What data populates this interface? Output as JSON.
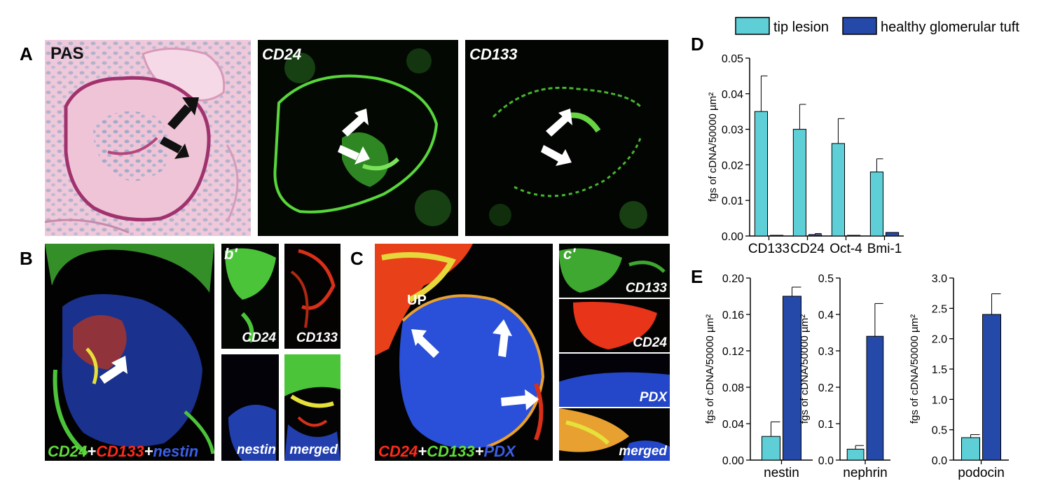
{
  "panels": {
    "A": {
      "letter": "A",
      "images": [
        {
          "label": "PAS"
        },
        {
          "label": "CD24"
        },
        {
          "label": "CD133"
        }
      ]
    },
    "B": {
      "letter": "B",
      "caption": {
        "parts": [
          {
            "text": "CD24",
            "color": "#5fdd3a"
          },
          {
            "text": "+",
            "color": "#ffffff"
          },
          {
            "text": "CD133",
            "color": "#ff2a1a"
          },
          {
            "text": "+",
            "color": "#ffffff"
          },
          {
            "text": "nestin",
            "color": "#3a5fe8"
          }
        ]
      },
      "sub": {
        "letter": "b'",
        "tiles": [
          "CD24",
          "CD133",
          "nestin",
          "merged"
        ]
      }
    },
    "C": {
      "letter": "C",
      "inner_label": "UP",
      "caption": {
        "parts": [
          {
            "text": "CD24",
            "color": "#ff2a1a"
          },
          {
            "text": "+",
            "color": "#ffffff"
          },
          {
            "text": "CD133",
            "color": "#5fdd3a"
          },
          {
            "text": "+",
            "color": "#ffffff"
          },
          {
            "text": "PDX",
            "color": "#3a5fe8"
          }
        ]
      },
      "sub": {
        "letter": "c'",
        "tiles": [
          "CD133",
          "CD24",
          "PDX",
          "merged"
        ]
      }
    },
    "D": {
      "letter": "D"
    },
    "E": {
      "letter": "E"
    }
  },
  "colors": {
    "tip_lesion": "#5ecfd6",
    "healthy": "#2449a8",
    "green_stain": "#4fd23a",
    "red_stain": "#ff3018",
    "blue_stain": "#2a4fd8",
    "pas_bg": "#efc8da"
  },
  "legend": [
    {
      "label": "tip lesion",
      "color": "#5ecfd6"
    },
    {
      "label": "healthy glomerular tuft",
      "color": "#2449a8"
    }
  ],
  "chart_data": [
    {
      "panel": "D",
      "type": "bar",
      "categories": [
        "CD133",
        "CD24",
        "Oct-4",
        "Bmi-1"
      ],
      "series": [
        {
          "name": "tip lesion",
          "values": [
            0.035,
            0.03,
            0.026,
            0.018
          ],
          "errors": [
            0.01,
            0.007,
            0.007,
            0.0037
          ]
        },
        {
          "name": "healthy glomerular tuft",
          "values": [
            0.0002,
            0.0004,
            0.0002,
            0.001
          ],
          "errors": [
            0,
            0.0003,
            0,
            0
          ]
        }
      ],
      "ylabel": "fgs of cDNA/50000 µm²",
      "ylim": [
        0,
        0.05
      ],
      "yticks": [
        "0.00",
        "0.01",
        "0.02",
        "0.03",
        "0.04",
        "0.05"
      ]
    },
    {
      "panel": "E",
      "type": "bar",
      "categories": [
        "nestin"
      ],
      "series": [
        {
          "name": "tip lesion",
          "values": [
            0.026
          ],
          "errors": [
            0.016
          ]
        },
        {
          "name": "healthy glomerular tuft",
          "values": [
            0.18
          ],
          "errors": [
            0.01
          ]
        }
      ],
      "ylabel": "fgs of cDNA/50000 µm²",
      "ylim": [
        0,
        0.2
      ],
      "yticks": [
        "0.00",
        "0.04",
        "0.08",
        "0.12",
        "0.16",
        "0.20"
      ]
    },
    {
      "panel": "E",
      "type": "bar",
      "categories": [
        "nephrin"
      ],
      "series": [
        {
          "name": "tip lesion",
          "values": [
            0.03
          ],
          "errors": [
            0.01
          ]
        },
        {
          "name": "healthy glomerular tuft",
          "values": [
            0.34
          ],
          "errors": [
            0.09
          ]
        }
      ],
      "ylabel": "fgs of cDNA/50000 µm²",
      "ylim": [
        0,
        0.5
      ],
      "yticks": [
        "0.0",
        "0.1",
        "0.2",
        "0.3",
        "0.4",
        "0.5"
      ]
    },
    {
      "panel": "E",
      "type": "bar",
      "categories": [
        "podocin"
      ],
      "series": [
        {
          "name": "tip lesion",
          "values": [
            0.37
          ],
          "errors": [
            0.05
          ]
        },
        {
          "name": "healthy glomerular tuft",
          "values": [
            2.4
          ],
          "errors": [
            0.34
          ]
        }
      ],
      "ylabel": "fgs of cDNA/50000 µm²",
      "ylim": [
        0,
        3.0
      ],
      "yticks": [
        "0.0",
        "0.5",
        "1.0",
        "1.5",
        "2.0",
        "2.5",
        "3.0"
      ]
    }
  ]
}
